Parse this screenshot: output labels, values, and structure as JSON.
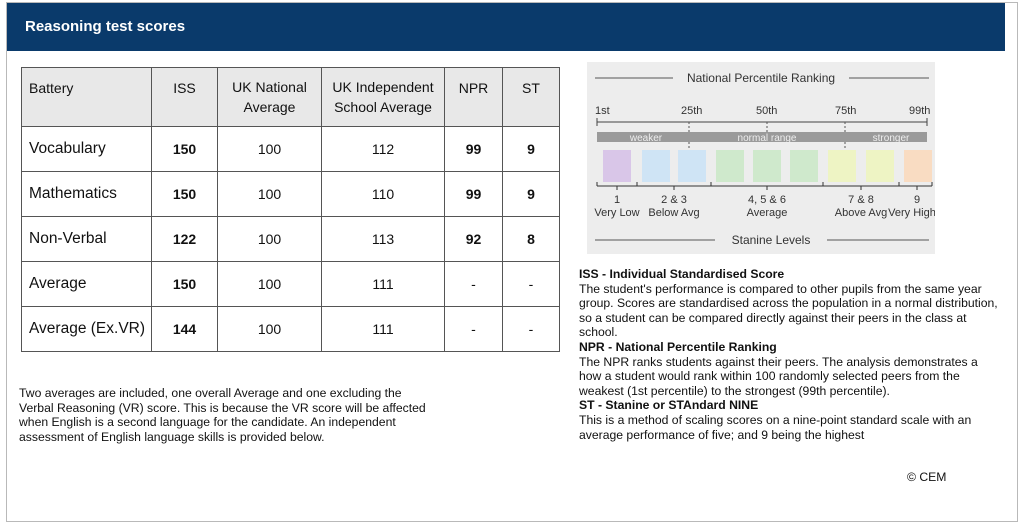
{
  "header": {
    "title": "Reasoning test scores"
  },
  "table": {
    "columns": [
      "Battery",
      "ISS",
      "UK National Average",
      "UK Independent School Average",
      "NPR",
      "ST"
    ],
    "rows": [
      {
        "battery": "Vocabulary",
        "iss": "150",
        "uk_national": "100",
        "uk_independent": "112",
        "npr": "99",
        "st": "9"
      },
      {
        "battery": "Mathematics",
        "iss": "150",
        "uk_national": "100",
        "uk_independent": "110",
        "npr": "99",
        "st": "9"
      },
      {
        "battery": "Non-Verbal",
        "iss": "122",
        "uk_national": "100",
        "uk_independent": "113",
        "npr": "92",
        "st": "8"
      },
      {
        "battery": "Average",
        "iss": "150",
        "uk_national": "100",
        "uk_independent": "111",
        "npr": "-",
        "st": "-"
      },
      {
        "battery": "Average (Ex.VR)",
        "iss": "144",
        "uk_national": "100",
        "uk_independent": "111",
        "npr": "-",
        "st": "-"
      }
    ]
  },
  "note": "Two averages are included, one overall Average and one excluding the Verbal Reasoning (VR) score. This is because the VR score will be affected when English is a second language for the candidate. An independent assessment of English language skills is provided below.",
  "npr_diagram": {
    "title": "National Percentile Ranking",
    "percentiles": [
      "1st",
      "25th",
      "50th",
      "75th",
      "99th"
    ],
    "bands": [
      "weaker",
      "normal range",
      "stronger"
    ],
    "stanines": [
      {
        "number": "1",
        "label": "Very Low",
        "color": "#d9c6e8"
      },
      {
        "number": "2 & 3",
        "label": "Below Avg",
        "color": "#cfe4f5"
      },
      {
        "number": "4, 5 & 6",
        "label": "Average",
        "color": "#cfe9cc"
      },
      {
        "number": "7 & 8",
        "label": "Above Avg",
        "color": "#eef4c4"
      },
      {
        "number": "9",
        "label": "Very High",
        "color": "#f9dcc2"
      }
    ],
    "footer": "Stanine Levels"
  },
  "definitions": [
    {
      "heading": "ISS - Individual Standardised Score",
      "body": "The student's performance is compared to other pupils from the same year group. Scores are standardised across the population in a normal distribution, so a student can be compared directly against their peers in the class at school."
    },
    {
      "heading": "NPR - National Percentile Ranking",
      "body": "The NPR ranks students against their peers. The analysis demonstrates a how a student would rank within 100 randomly selected peers from the weakest (1st percentile) to the strongest (99th percentile)."
    },
    {
      "heading": "ST - Stanine or STAndard NINE",
      "body": "This is a method of scaling scores on a nine-point standard scale with an average performance of five; and 9 being the highest"
    }
  ],
  "copyright": "© CEM"
}
